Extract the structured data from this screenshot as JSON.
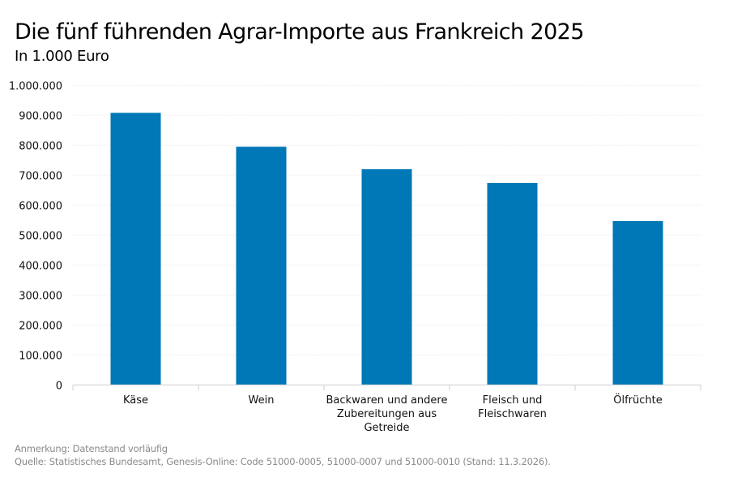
{
  "chart_data": {
    "type": "bar",
    "title": "Die fünf führenden Agrar-Importe aus Frankreich 2025",
    "subtitle": "In 1.000 Euro",
    "categories": [
      "Käse",
      "Wein",
      "Backwaren und andere Zubereitungen aus Getreide",
      "Fleisch und Fleischwaren",
      "Ölfrüchte"
    ],
    "category_lines": [
      [
        "Käse"
      ],
      [
        "Wein"
      ],
      [
        "Backwaren und andere",
        "Zubereitungen aus",
        "Getreide"
      ],
      [
        "Fleisch und",
        "Fleischwaren"
      ],
      [
        "Ölfrüchte"
      ]
    ],
    "values": [
      908000,
      795000,
      720000,
      674000,
      547000
    ],
    "ylim": [
      0,
      1000000
    ],
    "yticks": [
      0,
      100000,
      200000,
      300000,
      400000,
      500000,
      600000,
      700000,
      800000,
      900000,
      1000000
    ],
    "ytick_labels": [
      "0",
      "100.000",
      "200.000",
      "300.000",
      "400.000",
      "500.000",
      "600.000",
      "700.000",
      "800.000",
      "900.000",
      "1.000.000"
    ],
    "grid": true,
    "bar_color": "#0077b6"
  },
  "footer": {
    "note": "Anmerkung: Datenstand vorläufig",
    "source": "Quelle: Statistisches Bundesamt, Genesis-Online: Code 51000-0005, 51000-0007 und 51000-0010 (Stand: 11.3.2026)."
  }
}
